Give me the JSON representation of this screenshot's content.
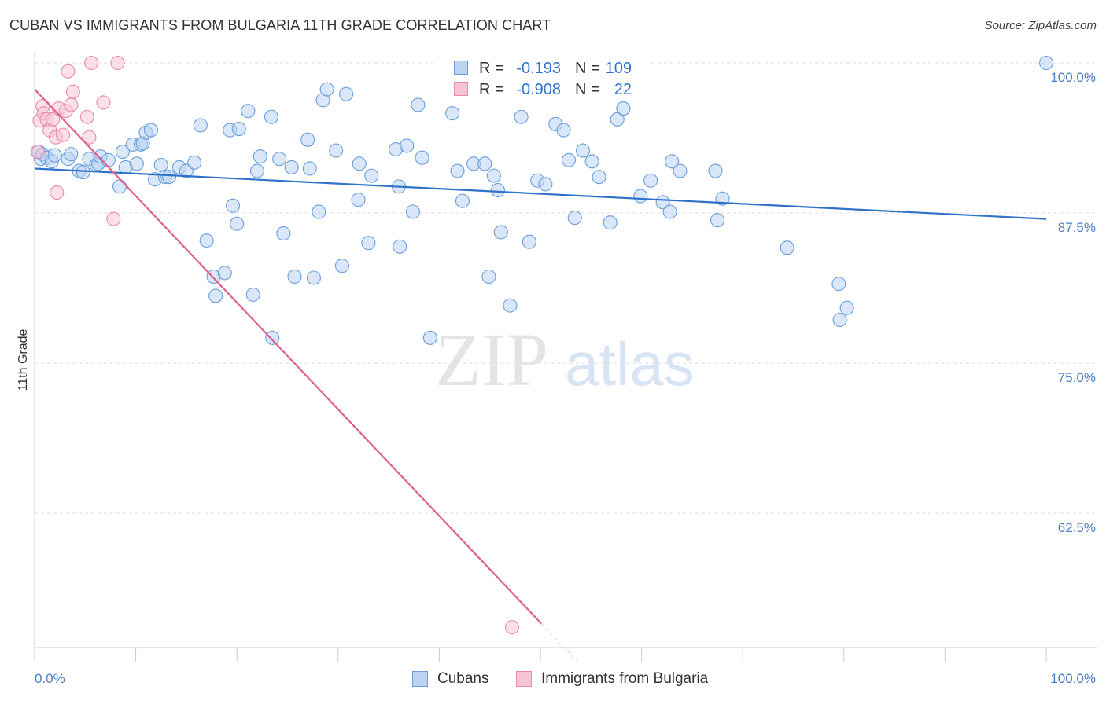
{
  "title": "CUBAN VS IMMIGRANTS FROM BULGARIA 11TH GRADE CORRELATION CHART",
  "source": "Source: ZipAtlas.com",
  "watermark": {
    "zip": "ZIP",
    "atlas": "atlas"
  },
  "colors": {
    "blue": "#6a9fdc",
    "blue_fill": "#bcd3f2",
    "blue_line": "#2f73c9",
    "pink": "#ea8aa8",
    "pink_fill": "#f7c6d5",
    "pink_line": "#e0608e",
    "axis_text": "#4a7fc4",
    "grid": "#dddddd"
  },
  "legend_top": {
    "rows": [
      {
        "r_label": "R =",
        "r_value": "-0.193",
        "n_label": "N =",
        "n_value": "109"
      },
      {
        "r_label": "R =",
        "r_value": "-0.908",
        "n_label": "N =",
        "n_value": "22"
      }
    ]
  },
  "legend_bottom": {
    "items": [
      "Cubans",
      "Immigrants from Bulgaria"
    ]
  },
  "chart_data": {
    "type": "scatter",
    "title": "CUBAN VS IMMIGRANTS FROM BULGARIA 11TH GRADE CORRELATION CHART",
    "xlabel": "",
    "ylabel": "11th Grade",
    "xlim": [
      0,
      100
    ],
    "ylim": [
      51.5,
      101.5
    ],
    "x_tick_labels": [
      "0.0%",
      "100.0%"
    ],
    "y_ticks": [
      100.0,
      87.5,
      75.0,
      62.5
    ],
    "y_tick_labels": [
      "100.0%",
      "87.5%",
      "75.0%",
      "62.5%"
    ],
    "grid": true,
    "series": [
      {
        "name": "Cubans",
        "trend": {
          "x": [
            0,
            100
          ],
          "y": [
            91.2,
            87.0
          ]
        },
        "x": [
          0.4,
          0.6,
          0.8,
          1.2,
          1.7,
          2.0,
          3.3,
          3.6,
          4.4,
          4.8,
          5.4,
          6.1,
          6.3,
          6.5,
          7.3,
          8.4,
          8.7,
          9.0,
          9.7,
          10.1,
          10.5,
          10.7,
          11.0,
          11.5,
          11.9,
          12.5,
          12.9,
          13.3,
          14.3,
          15.0,
          15.8,
          16.4,
          17.0,
          17.7,
          17.9,
          18.8,
          19.3,
          19.6,
          20.0,
          20.2,
          21.1,
          21.6,
          22.0,
          22.3,
          23.4,
          23.5,
          24.2,
          24.6,
          25.4,
          25.7,
          27.0,
          27.2,
          27.6,
          28.1,
          28.5,
          28.9,
          29.8,
          30.4,
          30.8,
          32.0,
          32.1,
          33.0,
          33.3,
          35.7,
          36.0,
          36.1,
          36.8,
          37.4,
          37.9,
          38.3,
          39.1,
          41.3,
          41.8,
          42.3,
          43.4,
          44.5,
          44.9,
          45.4,
          45.8,
          46.1,
          47.0,
          48.1,
          48.9,
          49.7,
          50.5,
          51.5,
          52.3,
          52.8,
          53.4,
          54.2,
          55.1,
          55.8,
          56.9,
          57.6,
          58.2,
          59.9,
          60.9,
          62.1,
          62.8,
          63.0,
          63.8,
          67.3,
          67.5,
          68.0,
          74.4,
          79.5,
          79.6,
          80.3,
          100.0
        ],
        "y": [
          92.6,
          92.0,
          92.4,
          92.1,
          91.8,
          92.3,
          92.0,
          92.4,
          91.0,
          90.9,
          92.0,
          91.5,
          91.6,
          92.2,
          91.9,
          89.7,
          92.6,
          91.3,
          93.2,
          91.6,
          93.2,
          93.3,
          94.2,
          94.4,
          90.3,
          91.5,
          90.5,
          90.5,
          91.3,
          91.0,
          91.7,
          94.8,
          85.2,
          82.2,
          80.6,
          82.5,
          94.4,
          88.1,
          86.6,
          94.5,
          96.0,
          80.7,
          91.0,
          92.2,
          95.5,
          77.1,
          92.0,
          85.8,
          91.3,
          82.2,
          93.6,
          91.2,
          82.1,
          87.6,
          96.9,
          97.8,
          92.7,
          83.1,
          97.4,
          88.6,
          91.6,
          85.0,
          90.6,
          92.8,
          89.7,
          84.7,
          93.1,
          87.6,
          96.5,
          92.1,
          77.1,
          95.8,
          91.0,
          88.5,
          91.6,
          91.6,
          82.2,
          90.6,
          89.4,
          85.9,
          79.8,
          95.5,
          85.1,
          90.2,
          89.9,
          94.9,
          94.4,
          91.9,
          87.1,
          92.7,
          91.8,
          90.5,
          86.7,
          95.3,
          96.2,
          88.9,
          90.2,
          88.4,
          87.6,
          91.8,
          91.0,
          91.0,
          86.9,
          88.7,
          84.6,
          81.6,
          78.6,
          79.6,
          100.0
        ]
      },
      {
        "name": "Immigrants from Bulgaria",
        "trend": {
          "x": [
            0,
            50.1
          ],
          "y": [
            97.8,
            53.3
          ]
        },
        "x": [
          0.3,
          0.5,
          0.8,
          0.9,
          1.2,
          1.5,
          1.8,
          2.1,
          2.2,
          2.4,
          2.8,
          3.1,
          3.3,
          3.6,
          3.8,
          5.2,
          5.4,
          5.6,
          6.8,
          7.8,
          8.2,
          47.2
        ],
        "y": [
          92.6,
          95.2,
          96.4,
          95.8,
          95.3,
          94.4,
          95.3,
          93.8,
          89.2,
          96.2,
          94.0,
          96.0,
          99.3,
          96.5,
          97.6,
          95.5,
          93.8,
          100.0,
          96.7,
          87.0,
          100.0,
          53.0
        ]
      }
    ]
  }
}
